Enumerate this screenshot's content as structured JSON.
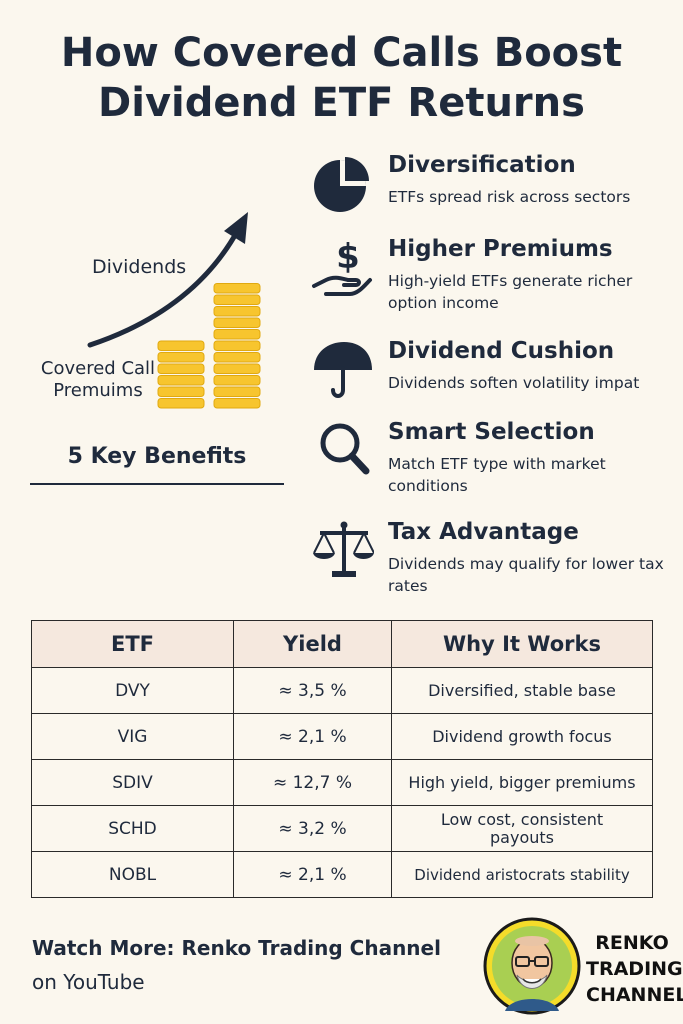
{
  "title_line1": "How Covered Calls Boost",
  "title_line2": "Dividend ETF Returns",
  "illustration": {
    "dividends_label": "Dividends",
    "premiums_label_line1": "Covered Call",
    "premiums_label_line2": "Premuims",
    "coin_color": "#f7c52e",
    "arrow_color": "#1f2a3c"
  },
  "key_benefits_label": "5 Key Benefits",
  "benefits": [
    {
      "icon": "pie-chart-icon",
      "title": "Diversification",
      "desc": "ETFs spread risk across sectors"
    },
    {
      "icon": "dollar-hand-icon",
      "title": "Higher Premiums",
      "desc": "High-yield ETFs generate richer option income"
    },
    {
      "icon": "umbrella-icon",
      "title": "Dividend Cushion",
      "desc": "Dividends soften volatility impat"
    },
    {
      "icon": "magnifier-icon",
      "title": "Smart Selection",
      "desc": "Match ETF type with market conditions"
    },
    {
      "icon": "scales-icon",
      "title": "Tax Advantage",
      "desc": "Dividends may qualify for lower tax rates"
    }
  ],
  "table": {
    "headers": [
      "ETF",
      "Yield",
      "Why It Works"
    ],
    "rows": [
      [
        "DVY",
        "≈ 3,5 %",
        "Diversified, stable base"
      ],
      [
        "VIG",
        "≈ 2,1 %",
        "Dividend growth focus"
      ],
      [
        "SDIV",
        "≈ 12,7 %",
        "High yield, bigger premiums"
      ],
      [
        "SCHD",
        "≈ 3,2 %",
        "Low cost, consistent payouts"
      ],
      [
        "NOBL",
        "≈ 2,1 %",
        "Dividend aristocrats stability"
      ]
    ]
  },
  "footer": {
    "watch_more": "Watch More: Renko Trading Channel",
    "platform": "on YouTube",
    "brand_line1": "RENKO",
    "brand_line2": "TRADING",
    "brand_line3": "CHANNEL",
    "logo_ring_color": "#f4dc2a"
  }
}
